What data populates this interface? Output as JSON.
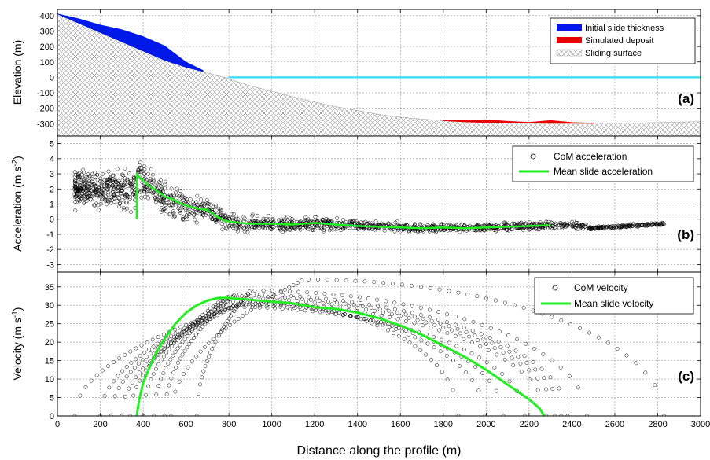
{
  "xaxis": {
    "label": "Distance along the profile (m)",
    "range": [
      0,
      3000
    ],
    "ticks": [
      "0",
      "200",
      "400",
      "600",
      "800",
      "1000",
      "1200",
      "1400",
      "1600",
      "1800",
      "2000",
      "2200",
      "2400",
      "2600",
      "2800",
      "3000"
    ]
  },
  "chart_data": [
    {
      "panel": "(a)",
      "type": "area",
      "ylabel": "Elevation (m)",
      "ylim": [
        -380,
        440
      ],
      "yticks": [
        "400",
        "300",
        "200",
        "100",
        "0",
        "-100",
        "-200",
        "-300"
      ],
      "grid": true,
      "legend_position": "top-right",
      "legend": [
        "Initial slide thickness",
        "Simulated deposit",
        "Sliding surface"
      ],
      "colors": {
        "slide": "#0018e8",
        "deposit": "#e80000",
        "sea": "#40e0f0",
        "hatch": "#9a9a9a"
      },
      "sliding_surface": {
        "x": [
          0,
          100,
          200,
          300,
          400,
          500,
          600,
          700,
          800,
          900,
          1000,
          1100,
          1200,
          1300,
          1400,
          1500,
          1600,
          1700,
          1800,
          1900,
          2000,
          2100,
          2200,
          2300,
          2400,
          2500,
          2600,
          2700,
          2800,
          2900,
          3000
        ],
        "y": [
          410,
          350,
          290,
          230,
          170,
          110,
          65,
          30,
          -10,
          -55,
          -90,
          -125,
          -160,
          -190,
          -215,
          -240,
          -258,
          -270,
          -280,
          -288,
          -292,
          -295,
          -296,
          -297,
          -297,
          -297,
          -296,
          -295,
          -293,
          -290,
          -286
        ]
      },
      "initial_slide_top": {
        "x": [
          0,
          100,
          200,
          300,
          400,
          500,
          600,
          680
        ],
        "y": [
          412,
          380,
          340,
          310,
          265,
          205,
          100,
          45
        ]
      },
      "simulated_deposit": {
        "x": [
          1800,
          1900,
          2000,
          2100,
          2200,
          2300,
          2400,
          2500
        ],
        "y": [
          -278,
          -278,
          -275,
          -285,
          -292,
          -280,
          -293,
          -297
        ]
      },
      "sea_level": {
        "x": [
          800,
          3000
        ],
        "y": [
          0,
          0
        ]
      }
    },
    {
      "panel": "(b)",
      "type": "scatter",
      "ylabel": "Acceleration (m s⁻²)",
      "ylabel_plain": "Acceleration (m s",
      "ylabel_exp": "-2",
      "ylim": [
        -3.5,
        5.5
      ],
      "yticks": [
        "5",
        "4",
        "3",
        "2",
        "1",
        "0",
        "-1",
        "-2",
        "-3"
      ],
      "grid": true,
      "legend_position": "top-right",
      "series": [
        {
          "name": "CoM acceleration",
          "marker": "open-circle",
          "color": "#000000"
        },
        {
          "name": "Mean slide acceleration",
          "color": "#22ee22",
          "x": [
            370,
            370,
            380,
            420,
            460,
            500,
            540,
            580,
            620,
            660,
            700,
            740,
            780,
            820,
            900,
            1000,
            1100,
            1200,
            1300,
            1400,
            1500,
            1600,
            1700,
            1800,
            1900,
            2000,
            2100,
            2200,
            2300
          ],
          "y": [
            0.0,
            3.0,
            2.8,
            2.3,
            1.9,
            1.5,
            1.3,
            1.0,
            0.8,
            0.7,
            0.6,
            0.2,
            -0.1,
            -0.2,
            -0.3,
            -0.3,
            -0.35,
            -0.25,
            -0.35,
            -0.45,
            -0.5,
            -0.55,
            -0.6,
            -0.55,
            -0.6,
            -0.55,
            -0.5,
            -0.45,
            -0.4
          ]
        }
      ]
    },
    {
      "panel": "(c)",
      "type": "scatter",
      "ylabel": "Velocity (m s⁻¹)",
      "ylabel_plain": "Velocity (m s",
      "ylabel_exp": "-1",
      "ylim": [
        0,
        39
      ],
      "yticks": [
        "35",
        "30",
        "25",
        "20",
        "15",
        "10",
        "5",
        "0"
      ],
      "grid": true,
      "legend_position": "top-right",
      "series": [
        {
          "name": "CoM velocity",
          "marker": "open-circle",
          "color": "#000000",
          "curves": [
            {
              "x_start": 80,
              "x_peak": 900,
              "v_peak": 31,
              "x_end": 1870
            },
            {
              "x_start": 200,
              "x_peak": 850,
              "v_peak": 30.5,
              "x_end": 1995
            },
            {
              "x_start": 250,
              "x_peak": 830,
              "v_peak": 30,
              "x_end": 2080
            },
            {
              "x_start": 300,
              "x_peak": 820,
              "v_peak": 29.5,
              "x_end": 2180
            },
            {
              "x_start": 340,
              "x_peak": 800,
              "v_peak": 31,
              "x_end": 2280
            },
            {
              "x_start": 400,
              "x_peak": 780,
              "v_peak": 32,
              "x_end": 2320
            },
            {
              "x_start": 450,
              "x_peak": 800,
              "v_peak": 32.5,
              "x_end": 2350
            },
            {
              "x_start": 500,
              "x_peak": 830,
              "v_peak": 33,
              "x_end": 2380
            },
            {
              "x_start": 650,
              "x_peak": 900,
              "v_peak": 34,
              "x_end": 2470
            },
            {
              "x_start": 530,
              "x_peak": 1150,
              "v_peak": 37,
              "x_end": 2830
            }
          ]
        },
        {
          "name": "Mean slide velocity",
          "color": "#22ee22",
          "x": [
            370,
            380,
            400,
            450,
            500,
            550,
            600,
            650,
            700,
            750,
            800,
            900,
            1000,
            1100,
            1200,
            1300,
            1400,
            1500,
            1600,
            1700,
            1800,
            1900,
            2000,
            2100,
            2150,
            2200,
            2250,
            2270
          ],
          "y": [
            0,
            4,
            9,
            16,
            21,
            25,
            28,
            30,
            31.3,
            32,
            32,
            31.5,
            31,
            30.5,
            29.5,
            29,
            28,
            26.5,
            24.5,
            22,
            19,
            16,
            12.5,
            8.5,
            6.5,
            4.5,
            2,
            0
          ]
        }
      ]
    }
  ]
}
